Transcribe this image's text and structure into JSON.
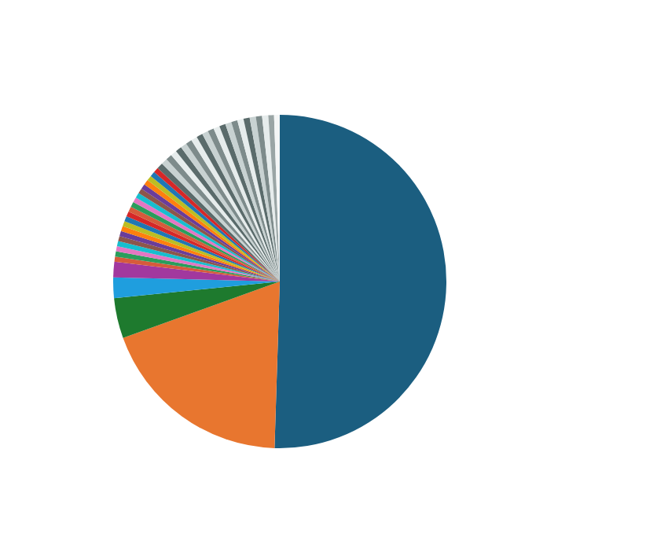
{
  "chart_data": {
    "type": "pie",
    "categories": [
      null,
      null,
      null,
      null,
      null,
      null,
      null,
      null,
      null,
      null,
      null,
      null,
      null,
      null,
      null,
      null,
      null,
      null,
      null,
      null,
      null,
      null,
      null,
      null,
      null,
      null,
      null,
      null,
      null,
      null,
      null,
      null,
      null,
      null,
      null,
      null,
      null,
      null,
      null,
      null,
      null,
      null,
      null,
      null,
      null,
      null,
      null
    ],
    "values": [
      50.5,
      19,
      3.9,
      2,
      1.5,
      0.5,
      0.5,
      0.5,
      0.5,
      0.5,
      0.5,
      0.5,
      0.5,
      0.5,
      0.5,
      0.5,
      0.5,
      0.5,
      0.5,
      0.5,
      0.5,
      0.5,
      0.5,
      0.5,
      0.5,
      0.6,
      0.6,
      0.6,
      0.6,
      0.6,
      0.6,
      0.6,
      0.6,
      0.6,
      0.6,
      0.6,
      0.6,
      0.6,
      0.6,
      0.6,
      0.6,
      0.6,
      0.6,
      0.6,
      0.6,
      0.55,
      0.55
    ],
    "colors": [
      "#1b5e80",
      "#e8762f",
      "#1e7a2e",
      "#1f9ede",
      "#a2389e",
      "#d65b3b",
      "#2a9d5c",
      "#e377c2",
      "#17becf",
      "#8c564b",
      "#6a3d9a",
      "#ff7f0e",
      "#bcbd22",
      "#1f77b4",
      "#d62728",
      "#d65b3b",
      "#2a9d5c",
      "#e377c2",
      "#17becf",
      "#8c564b",
      "#6a3d9a",
      "#ff7f0e",
      "#bcbd22",
      "#1f77b4",
      "#d62728",
      "#5a6b6b",
      "#c8d2d2",
      "#7d8b8b",
      "#e6ecec",
      "#5a6b6b",
      "#c8d2d2",
      "#7d8b8b",
      "#e6ecec",
      "#5a6b6b",
      "#c8d2d2",
      "#7d8b8b",
      "#e6ecec",
      "#5a6b6b",
      "#c8d2d2",
      "#7d8b8b",
      "#e6ecec",
      "#5a6b6b",
      "#c8d2d2",
      "#7d8b8b",
      "#e6ecec",
      "#9aa5a5",
      "#f4f6f6"
    ]
  }
}
